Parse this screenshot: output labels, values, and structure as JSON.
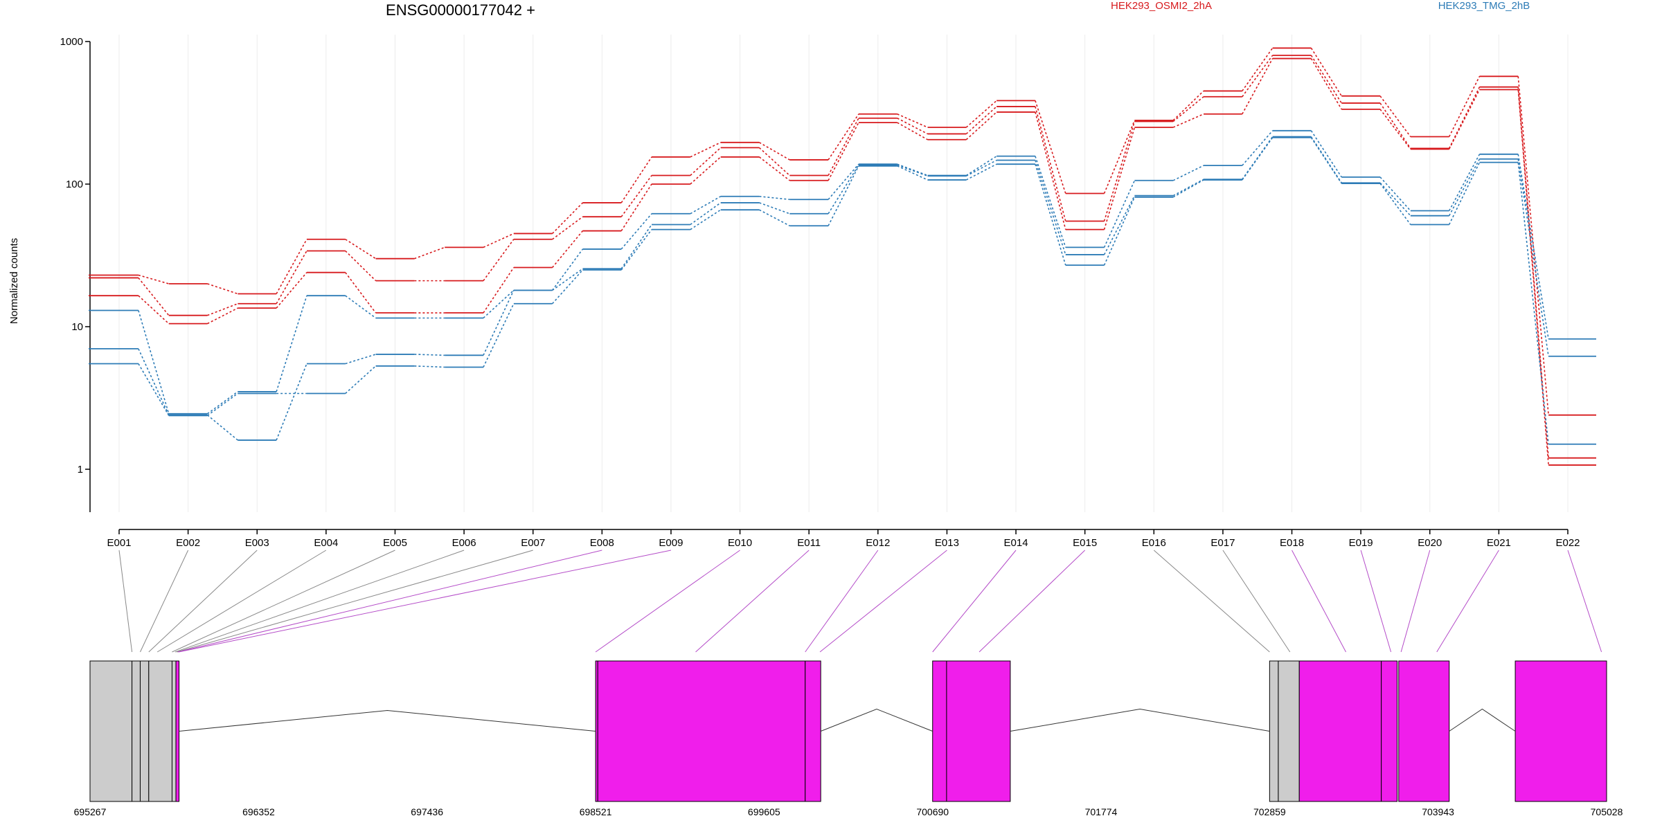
{
  "chart_data": {
    "type": "line",
    "title": "ENSG00000177042 +",
    "ylabel": "Normalized counts",
    "yscale": "log",
    "ylim": [
      0.5,
      1000
    ],
    "yticks": [
      1,
      10,
      100,
      1000
    ],
    "ytick_labels": [
      "1",
      "10",
      "100",
      "1000"
    ],
    "categories": [
      "E001",
      "E002",
      "E003",
      "E004",
      "E005",
      "E006",
      "E007",
      "E008",
      "E009",
      "E010",
      "E011",
      "E012",
      "E013",
      "E014",
      "E015",
      "E016",
      "E017",
      "E018",
      "E019",
      "E020",
      "E021",
      "E022"
    ],
    "groups": [
      {
        "name": "HEK293_OSMI2_2hA",
        "color": "#d7191c"
      },
      {
        "name": "HEK293_TMG_2hB",
        "color": "#2c7bb6"
      }
    ],
    "series": [
      {
        "group": "HEK293_OSMI2_2hA",
        "values": [
          23,
          20,
          17,
          41,
          30,
          36,
          45,
          74,
          155,
          196,
          148,
          310,
          250,
          385,
          86,
          280,
          450,
          900,
          415,
          215,
          570,
          2.4
        ]
      },
      {
        "group": "HEK293_OSMI2_2hA",
        "values": [
          22,
          12,
          14.5,
          34,
          21,
          21,
          41,
          59,
          115,
          180,
          115,
          290,
          225,
          350,
          55,
          275,
          410,
          800,
          370,
          178,
          480,
          1.2
        ]
      },
      {
        "group": "HEK293_OSMI2_2hA",
        "values": [
          16.5,
          10.5,
          13.5,
          24,
          12.5,
          12.5,
          26,
          47,
          100,
          155,
          106,
          270,
          205,
          320,
          48,
          250,
          310,
          760,
          335,
          176,
          460,
          1.07
        ]
      },
      {
        "group": "HEK293_TMG_2hB",
        "values": [
          13,
          2.45,
          3.5,
          16.5,
          11.5,
          11.5,
          18,
          35,
          62,
          82,
          78,
          138,
          115,
          157,
          36,
          106,
          135,
          237,
          112,
          65,
          162,
          8.2
        ]
      },
      {
        "group": "HEK293_TMG_2hB",
        "values": [
          7,
          2.4,
          1.6,
          5.5,
          6.4,
          6.3,
          18,
          25.5,
          52,
          74,
          62,
          136,
          114,
          147,
          32,
          83,
          108,
          215,
          102,
          60,
          150,
          6.2
        ]
      },
      {
        "group": "HEK293_TMG_2hB",
        "values": [
          5.5,
          2.38,
          3.4,
          3.4,
          5.3,
          5.2,
          14.5,
          25,
          48,
          66,
          51,
          134,
          107,
          138,
          27,
          81,
          107,
          212,
          101,
          52,
          142,
          1.5
        ]
      }
    ],
    "grid": true,
    "legend": "top",
    "gene_model": {
      "coordinate_ticks": [
        695267,
        696352,
        697436,
        698521,
        699605,
        700690,
        701774,
        702859,
        703943,
        705028
      ],
      "coordinate_range": [
        695267,
        705028
      ]
    }
  }
}
